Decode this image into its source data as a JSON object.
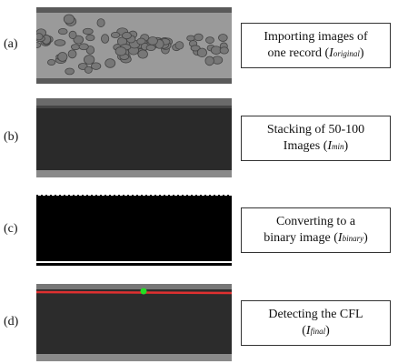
{
  "panels": [
    {
      "label": "(a)",
      "line1": "Importing images of",
      "line2": "one record (",
      "symbol": "I",
      "subscript": "original",
      "suffix": ")"
    },
    {
      "label": "(b)",
      "line1": "Stacking of 50-100",
      "line2": "Images (",
      "symbol": "I",
      "subscript": "min",
      "suffix": ")"
    },
    {
      "label": "(c)",
      "line1": "Converting to a",
      "line2": "binary image (",
      "symbol": "I",
      "subscript": "binary",
      "suffix": ")"
    },
    {
      "label": "(d)",
      "line1": "Detecting the CFL",
      "line2": "(",
      "symbol": "I",
      "subscript": "final",
      "suffix": ")"
    }
  ]
}
